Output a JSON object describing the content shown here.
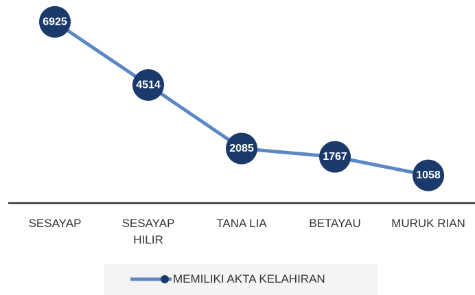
{
  "chart_data": {
    "type": "line",
    "categories": [
      "SESAYAP",
      "SESAYAP HILIR",
      "TANA LIA",
      "BETAYAU",
      "MURUK RIAN"
    ],
    "series": [
      {
        "name": "MEMILIKI AKTA KELAHIRAN",
        "color": "#5b87c5",
        "marker_color": "#1a3a6b",
        "values": [
          6925,
          4514,
          2085,
          1767,
          1058
        ]
      }
    ],
    "ylim": [
      0,
      7500
    ],
    "legend": "bottom"
  }
}
